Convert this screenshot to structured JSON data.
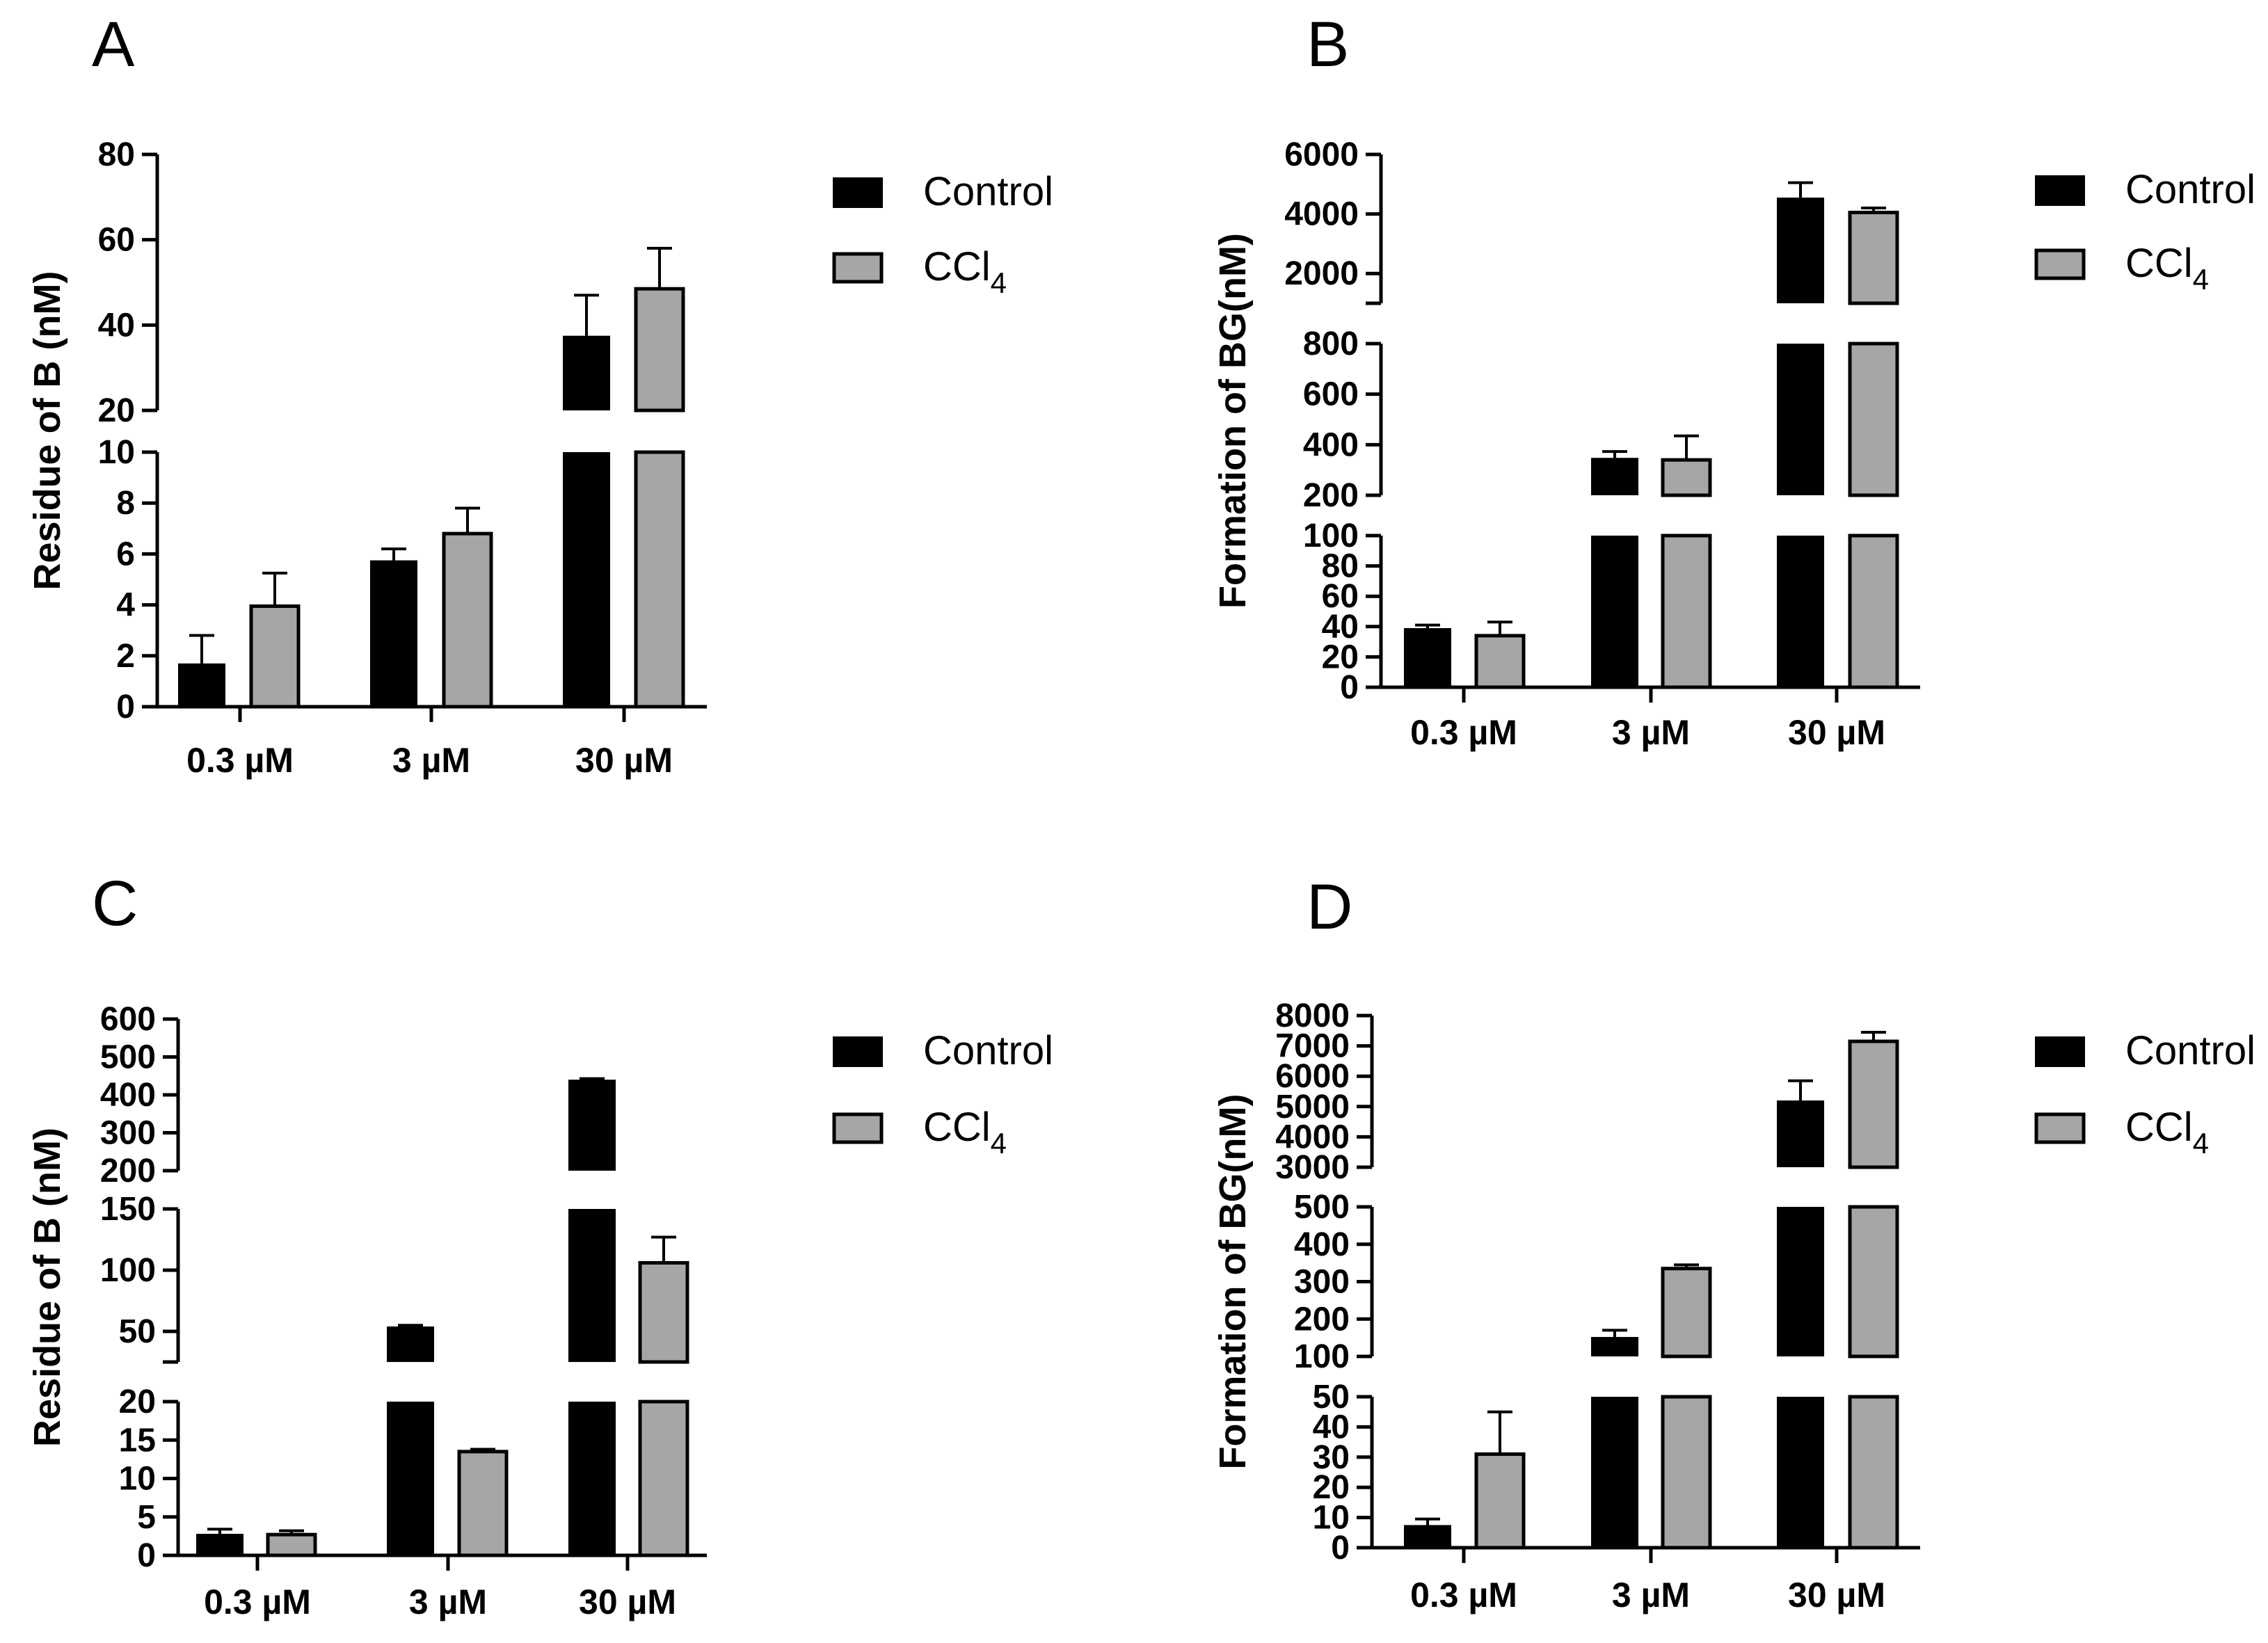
{
  "figure": {
    "legend": {
      "control": "Control",
      "ccl4_main": "CCl",
      "ccl4_sub": "4"
    }
  },
  "colors": {
    "control": "#000000",
    "ccl4": "#a6a6a6",
    "axis": "#000000",
    "background": "#ffffff"
  },
  "chart_data": [
    {
      "panel": "A",
      "type": "bar",
      "title": "",
      "ylabel": "Residue of B (nM)",
      "xlabel": "",
      "categories": [
        "0.3 µM",
        "3 µM",
        "30 µM"
      ],
      "series": [
        {
          "name": "Control",
          "values": [
            1.7,
            5.75,
            37.5
          ],
          "errors": [
            1.1,
            0.45,
            9.5
          ]
        },
        {
          "name": "CCl4",
          "values": [
            3.95,
            6.8,
            48.5
          ],
          "errors": [
            1.3,
            1.0,
            9.5
          ]
        }
      ],
      "segments": [
        {
          "range": [
            0,
            10
          ],
          "ticks": [
            0,
            2,
            4,
            6,
            8,
            10
          ]
        },
        {
          "range": [
            20,
            80
          ],
          "ticks": [
            20,
            40,
            60,
            80
          ]
        }
      ],
      "legend_position": "top-right"
    },
    {
      "panel": "B",
      "type": "bar",
      "title": "",
      "ylabel": "Formation of BG(nM)",
      "xlabel": "",
      "categories": [
        "0.3 µM",
        "3 µM",
        "30 µM"
      ],
      "series": [
        {
          "name": "Control",
          "values": [
            39,
            348,
            4550
          ],
          "errors": [
            2,
            25,
            500
          ]
        },
        {
          "name": "CCl4",
          "values": [
            34,
            340,
            4050
          ],
          "errors": [
            9,
            95,
            150
          ]
        }
      ],
      "segments": [
        {
          "range": [
            0,
            100
          ],
          "ticks": [
            0,
            20,
            40,
            60,
            80,
            100
          ]
        },
        {
          "range": [
            200,
            800
          ],
          "ticks": [
            200,
            400,
            600,
            800
          ]
        },
        {
          "range": [
            1000,
            6000
          ],
          "ticks": [
            2000,
            4000,
            6000
          ]
        }
      ],
      "legend_position": "top-right"
    },
    {
      "panel": "C",
      "type": "bar",
      "title": "",
      "ylabel": "Residue of B (nM)",
      "xlabel": "",
      "categories": [
        "0.3 µM",
        "3 µM",
        "30 µM"
      ],
      "series": [
        {
          "name": "Control",
          "values": [
            2.8,
            54,
            440
          ],
          "errors": [
            0.6,
            1,
            3
          ]
        },
        {
          "name": "CCl4",
          "values": [
            2.7,
            13.5,
            106
          ],
          "errors": [
            0.5,
            0.3,
            21
          ]
        }
      ],
      "segments": [
        {
          "range": [
            0,
            20
          ],
          "ticks": [
            0,
            5,
            10,
            15,
            20
          ]
        },
        {
          "range": [
            25,
            150
          ],
          "ticks": [
            50,
            100,
            150
          ]
        },
        {
          "range": [
            200,
            600
          ],
          "ticks": [
            200,
            300,
            400,
            500,
            600
          ]
        }
      ],
      "legend_position": "top-right"
    },
    {
      "panel": "D",
      "type": "bar",
      "title": "",
      "ylabel": "Formation of BG(nM)",
      "xlabel": "",
      "categories": [
        "0.3 µM",
        "3 µM",
        "30 µM"
      ],
      "series": [
        {
          "name": "Control",
          "values": [
            7.5,
            152,
            5200
          ],
          "errors": [
            2,
            18,
            650
          ]
        },
        {
          "name": "CCl4",
          "values": [
            31,
            335,
            7150
          ],
          "errors": [
            14,
            10,
            300
          ]
        }
      ],
      "segments": [
        {
          "range": [
            0,
            50
          ],
          "ticks": [
            0,
            10,
            20,
            30,
            40,
            50
          ]
        },
        {
          "range": [
            100,
            500
          ],
          "ticks": [
            100,
            200,
            300,
            400,
            500
          ]
        },
        {
          "range": [
            3000,
            8000
          ],
          "ticks": [
            3000,
            4000,
            5000,
            6000,
            7000,
            8000
          ]
        }
      ],
      "legend_position": "top-right"
    }
  ]
}
